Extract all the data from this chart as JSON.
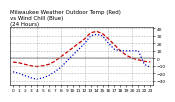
{
  "title": "Milwaukee Weather Outdoor Temp (Red)\nvs Wind Chill (Blue)\n(24 Hours)",
  "title_fontsize": 4.0,
  "background_color": "#ffffff",
  "grid_color": "#aaaaaa",
  "hours": [
    0,
    1,
    2,
    3,
    4,
    5,
    6,
    7,
    8,
    9,
    10,
    11,
    12,
    13,
    14,
    15,
    16,
    17,
    18,
    19,
    20,
    21,
    22,
    23
  ],
  "temp_red": [
    -5,
    -6,
    -8,
    -10,
    -11,
    -10,
    -8,
    -4,
    2,
    8,
    14,
    20,
    26,
    34,
    36,
    33,
    26,
    18,
    10,
    4,
    0,
    -2,
    -4,
    -5
  ],
  "wind_chill_blue": [
    -18,
    -20,
    -23,
    -26,
    -28,
    -26,
    -23,
    -18,
    -12,
    -4,
    4,
    12,
    20,
    30,
    32,
    30,
    20,
    12,
    10,
    10,
    10,
    10,
    -8,
    -12
  ],
  "ylim": [
    -35,
    42
  ],
  "yticks": [
    -30,
    -20,
    -10,
    0,
    10,
    20,
    30,
    40
  ],
  "red_color": "#cc0000",
  "blue_color": "#0000cc",
  "line_width": 0.9,
  "marker_size": 1.5,
  "xlabel_fontsize": 3.2,
  "ylabel_fontsize": 3.2,
  "title_color": "#000000"
}
